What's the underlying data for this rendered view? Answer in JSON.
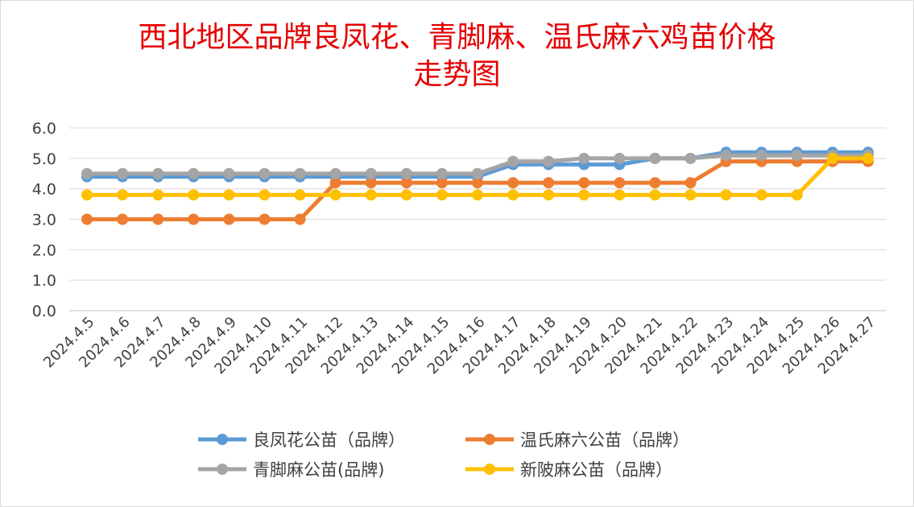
{
  "chart_data": {
    "type": "line",
    "title_lines": [
      "西北地区品牌良凤花、青脚麻、温氏麻六鸡苗价格",
      "走势图"
    ],
    "xlabel": "",
    "ylabel": "",
    "ylim": [
      0,
      6
    ],
    "yticks": [
      "0.0",
      "1.0",
      "2.0",
      "3.0",
      "4.0",
      "5.0",
      "6.0"
    ],
    "grid": true,
    "legend_position": "bottom",
    "x": [
      "2024.4.5",
      "2024.4.6",
      "2024.4.7",
      "2024.4.8",
      "2024.4.9",
      "2024.4.10",
      "2024.4.11",
      "2024.4.12",
      "2024.4.13",
      "2024.4.14",
      "2024.4.15",
      "2024.4.16",
      "2024.4.17",
      "2024.4.18",
      "2024.4.19",
      "2024.4.20",
      "2024.4.21",
      "2024.4.22",
      "2024.4.23",
      "2024.4.24",
      "2024.4.25",
      "2024.4.26",
      "2024.4.27"
    ],
    "series": [
      {
        "name": "良凤花公苗（品牌）",
        "color": "#5b9bd5",
        "values": [
          4.4,
          4.4,
          4.4,
          4.4,
          4.4,
          4.4,
          4.4,
          4.4,
          4.4,
          4.4,
          4.4,
          4.4,
          4.8,
          4.8,
          4.8,
          4.8,
          5.0,
          5.0,
          5.2,
          5.2,
          5.2,
          5.2,
          5.2
        ]
      },
      {
        "name": "温氏麻六公苗（品牌）",
        "color": "#ed7d31",
        "values": [
          3.0,
          3.0,
          3.0,
          3.0,
          3.0,
          3.0,
          3.0,
          4.2,
          4.2,
          4.2,
          4.2,
          4.2,
          4.2,
          4.2,
          4.2,
          4.2,
          4.2,
          4.2,
          4.9,
          4.9,
          4.9,
          4.9,
          4.9
        ]
      },
      {
        "name": "青脚麻公苗(品牌)",
        "color": "#a5a5a5",
        "values": [
          4.5,
          4.5,
          4.5,
          4.5,
          4.5,
          4.5,
          4.5,
          4.5,
          4.5,
          4.5,
          4.5,
          4.5,
          4.9,
          4.9,
          5.0,
          5.0,
          5.0,
          5.0,
          5.1,
          5.1,
          5.1,
          5.1,
          5.1
        ]
      },
      {
        "name": "新陂麻公苗（品牌）",
        "color": "#ffc000",
        "values": [
          3.8,
          3.8,
          3.8,
          3.8,
          3.8,
          3.8,
          3.8,
          3.8,
          3.8,
          3.8,
          3.8,
          3.8,
          3.8,
          3.8,
          3.8,
          3.8,
          3.8,
          3.8,
          3.8,
          3.8,
          3.8,
          5.0,
          5.0
        ]
      }
    ]
  }
}
